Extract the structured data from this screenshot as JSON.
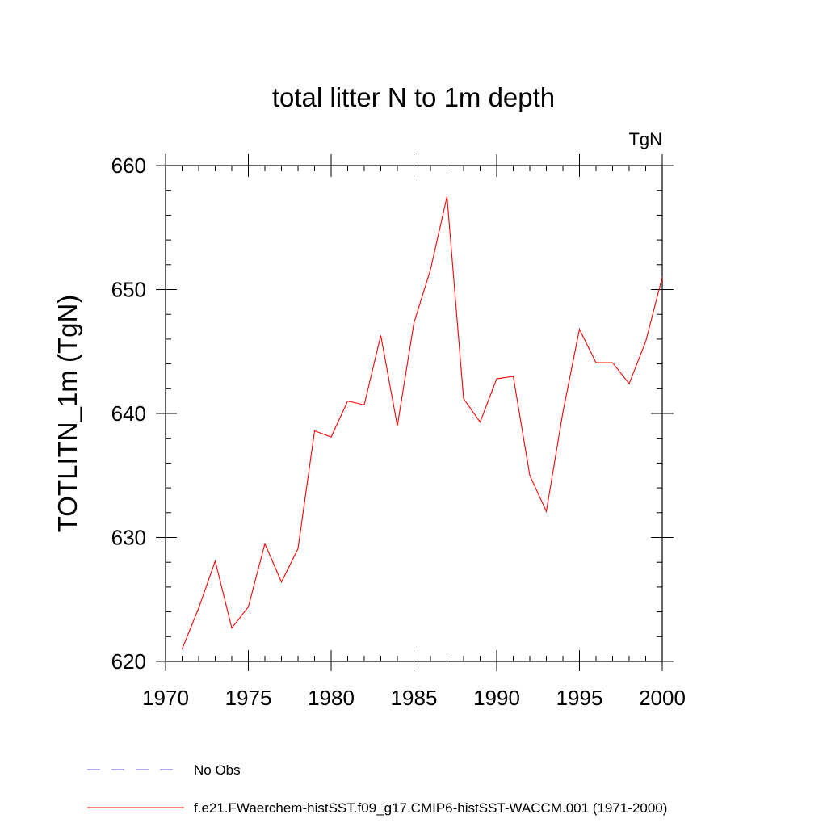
{
  "chart_data": {
    "type": "line",
    "title": "total litter N to 1m depth",
    "units": "TgN",
    "xlabel": "",
    "ylabel": "TOTLITN_1m  (TgN)",
    "xlim": [
      1970,
      2000
    ],
    "ylim": [
      620,
      660
    ],
    "x_ticks": [
      1970,
      1975,
      1980,
      1985,
      1990,
      1995,
      2000
    ],
    "y_ticks": [
      620,
      630,
      640,
      650,
      660
    ],
    "x_minor_step": 1,
    "y_minor_step": 2,
    "grid": false,
    "legend_position": "bottom-left",
    "series": [
      {
        "name": "f.e21.FWaerchem-histSST.f09_g17.CMIP6-histSST-WACCM.001 (1971-2000)",
        "color": "#ff0000",
        "dash": "solid",
        "x": [
          1971,
          1972,
          1973,
          1974,
          1975,
          1976,
          1977,
          1978,
          1979,
          1980,
          1981,
          1982,
          1983,
          1984,
          1985,
          1986,
          1987,
          1988,
          1989,
          1990,
          1991,
          1992,
          1993,
          1994,
          1995,
          1996,
          1997,
          1998,
          1999,
          2000
        ],
        "values": [
          621.0,
          624.3,
          628.1,
          622.7,
          624.4,
          629.5,
          626.4,
          629.1,
          638.6,
          638.1,
          641.0,
          640.7,
          646.3,
          639.0,
          647.3,
          651.6,
          657.5,
          641.2,
          639.3,
          642.8,
          643.0,
          635.0,
          632.1,
          640.1,
          646.8,
          644.1,
          644.1,
          642.4,
          645.8,
          651.0
        ]
      }
    ],
    "legend": [
      {
        "label": "No Obs",
        "color": "#6a5acd",
        "dash": "dashed"
      },
      {
        "label": "f.e21.FWaerchem-histSST.f09_g17.CMIP6-histSST-WACCM.001 (1971-2000)",
        "color": "#ff0000",
        "dash": "solid"
      }
    ]
  }
}
